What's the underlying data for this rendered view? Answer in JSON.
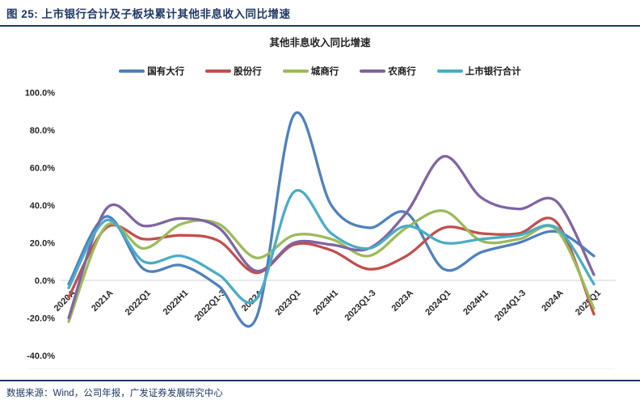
{
  "header": {
    "title": "图 25:  上市银行合计及子板块累计其他非息收入同比增速"
  },
  "source": {
    "text": "数据来源：Wind，公司年报，广发证券发展研究中心"
  },
  "colors": {
    "accent_navy": "#1F3864",
    "gridline": "#D9D9D9"
  },
  "chart_data": {
    "type": "line",
    "title": "其他非息收入同比增速",
    "smooth": true,
    "legend_position": "top",
    "grid": "zero-line-only",
    "y_axis": {
      "min": -40,
      "max": 100,
      "step": 20,
      "unit": "%",
      "tick_format": "one-decimal-percent"
    },
    "y_tick_labels": [
      "100.0%",
      "80.0%",
      "60.0%",
      "40.0%",
      "20.0%",
      "0.0%",
      "-20.0%",
      "-40.0%"
    ],
    "categories": [
      "2020A",
      "2021A",
      "2022Q1",
      "2022H1",
      "2022Q1-3",
      "2022A",
      "2023Q1",
      "2023H1",
      "2023Q1-3",
      "2023A",
      "2024Q1",
      "2024H1",
      "2024Q1-3",
      "2024A",
      "2025Q1"
    ],
    "series": [
      {
        "name": "国有大行",
        "color": "#4F81BD",
        "values": [
          -2,
          34,
          6,
          8,
          -3,
          -20,
          88,
          40,
          28,
          36,
          6,
          15,
          20,
          26,
          13
        ]
      },
      {
        "name": "股份行",
        "color": "#C0504D",
        "values": [
          -9,
          28,
          22,
          24,
          21,
          4,
          19,
          16,
          6,
          13,
          28,
          25,
          25,
          31,
          -18
        ]
      },
      {
        "name": "城商行",
        "color": "#9BBB59",
        "values": [
          -22,
          29,
          17,
          30,
          30,
          12,
          24,
          22,
          13,
          28,
          37,
          21,
          22,
          27,
          -15
        ]
      },
      {
        "name": "农商行",
        "color": "#8064A2",
        "values": [
          -20,
          38,
          29,
          33,
          28,
          5,
          20,
          19,
          17,
          36,
          66,
          44,
          38,
          42,
          3
        ]
      },
      {
        "name": "上市银行合计",
        "color": "#4BACC6",
        "values": [
          -4,
          32,
          10,
          13,
          3,
          -10,
          47,
          25,
          17,
          29,
          20,
          22,
          24,
          28,
          -2
        ]
      }
    ]
  }
}
